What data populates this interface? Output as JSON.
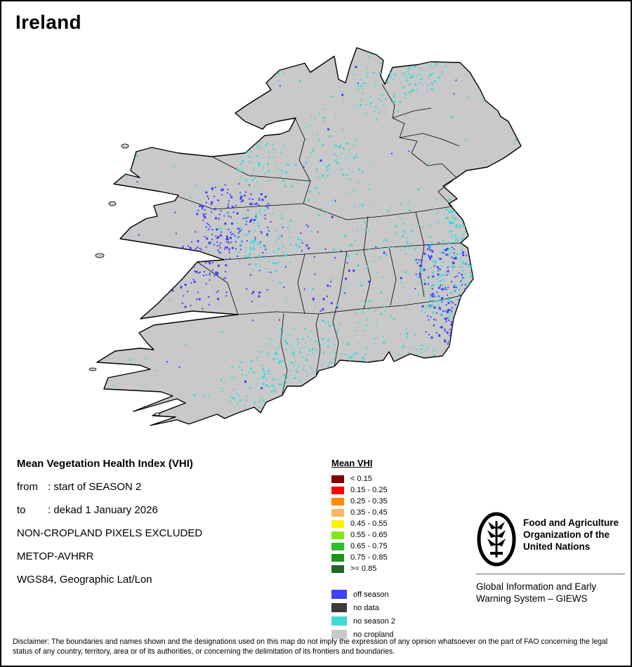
{
  "title": "Ireland",
  "map": {
    "land_color": "#C9C9C9",
    "outline_color": "#000000",
    "sea_color": "#FFFFFF"
  },
  "info_panel": {
    "heading": "Mean Vegetation Health Index (VHI)",
    "lines": [
      {
        "label": "from",
        "text": ": start of SEASON 2"
      },
      {
        "label": "to",
        "text": ": dekad 1 January 2026"
      },
      {
        "label": "",
        "text": "NON-CROPLAND PIXELS EXCLUDED"
      },
      {
        "label": "",
        "text": "METOP-AVHRR"
      },
      {
        "label": "",
        "text": "WGS84, Geographic Lat/Lon"
      }
    ]
  },
  "legend": {
    "title": "Mean VHI",
    "classes": [
      {
        "label": "< 0.15",
        "color": "#840000"
      },
      {
        "label": "0.15 - 0.25",
        "color": "#FF0000"
      },
      {
        "label": "0.25 - 0.35",
        "color": "#FF8C00"
      },
      {
        "label": "0.35 - 0.45",
        "color": "#FFB45E"
      },
      {
        "label": "0.45 - 0.55",
        "color": "#FFF200"
      },
      {
        "label": "0.55 - 0.65",
        "color": "#7CE817"
      },
      {
        "label": "0.65 - 0.75",
        "color": "#2DBE2D"
      },
      {
        "label": "0.75 - 0.85",
        "color": "#1C941C"
      },
      {
        "label": ">= 0.85",
        "color": "#266426"
      }
    ],
    "extra": [
      {
        "label": "off season",
        "color": "#4040FF"
      },
      {
        "label": "no data",
        "color": "#3A3A3A"
      },
      {
        "label": "no season 2",
        "color": "#3FD9D9"
      },
      {
        "label": "no cropland",
        "color": "#C9C9C9"
      }
    ]
  },
  "fao": {
    "org_lines": [
      "Food and Agriculture",
      "Organization of the",
      "United Nations"
    ],
    "giews_lines": [
      "Global Information and Early",
      "Warning System – GIEWS"
    ]
  },
  "disclaimer": "Disclaimer: The boundaries and names shown and the designations used on this map do not imply the expression of any opinion whatsoever on the part of FAO concerning the legal status of any country, territory, area or of its authorities, or concerning the delimitation of its frontiers and boundaries."
}
